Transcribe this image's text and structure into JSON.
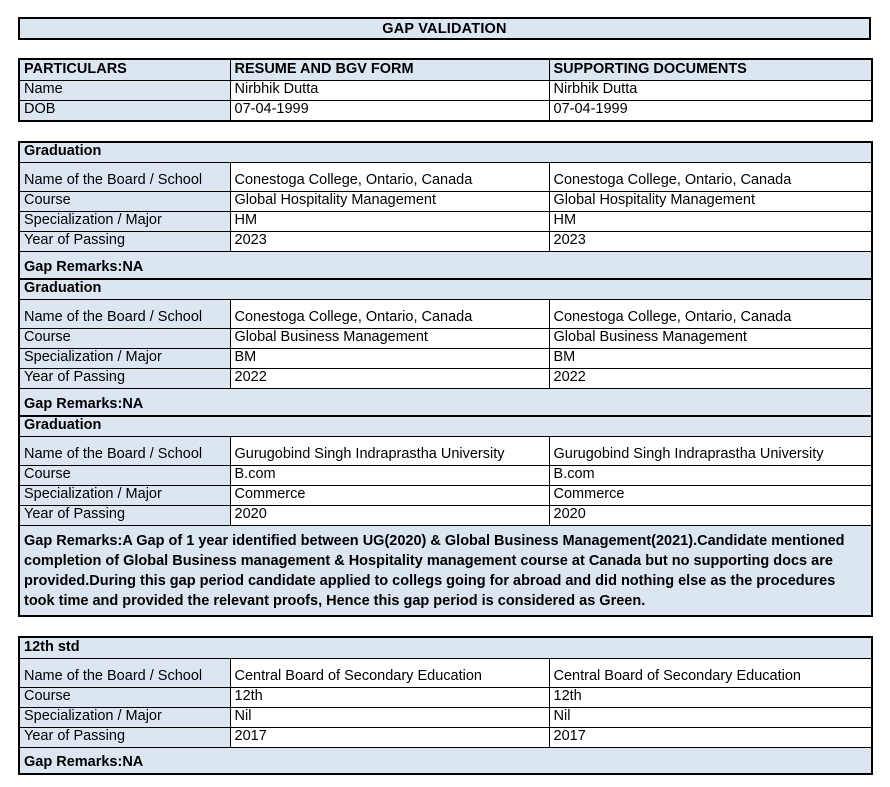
{
  "title": "GAP VALIDATION",
  "colors": {
    "header_bg": "#DCE6F1",
    "cell_bg": "#FFFFFF",
    "border": "#000000",
    "text": "#000000"
  },
  "particulars_table": {
    "headers": [
      "PARTICULARS",
      "RESUME AND BGV FORM",
      "SUPPORTING DOCUMENTS"
    ],
    "rows": [
      {
        "label": "Name",
        "resume": "Nirbhik Dutta",
        "docs": "Nirbhik Dutta"
      },
      {
        "label": "DOB",
        "resume": "07-04-1999",
        "docs": "07-04-1999"
      }
    ]
  },
  "sections": [
    {
      "heading": "Graduation",
      "rows": [
        {
          "label": "Name of the Board / School",
          "resume": "Conestoga College, Ontario, Canada",
          "docs": "Conestoga College, Ontario, Canada"
        },
        {
          "label": "Course",
          "resume": "Global Hospitality Management",
          "docs": "Global Hospitality Management"
        },
        {
          "label": "Specialization / Major",
          "resume": "HM",
          "docs": "HM"
        },
        {
          "label": "Year of Passing",
          "resume": "2023",
          "docs": "2023"
        }
      ],
      "gap_remarks": "Gap Remarks:NA"
    },
    {
      "heading": "Graduation",
      "rows": [
        {
          "label": "Name of the Board / School",
          "resume": "Conestoga College, Ontario, Canada",
          "docs": "Conestoga College, Ontario, Canada"
        },
        {
          "label": "Course",
          "resume": "Global Business Management",
          "docs": "Global Business Management"
        },
        {
          "label": "Specialization / Major",
          "resume": "BM",
          "docs": "BM"
        },
        {
          "label": "Year of Passing",
          "resume": "2022",
          "docs": "2022"
        }
      ],
      "gap_remarks": "Gap Remarks:NA"
    },
    {
      "heading": "Graduation",
      "rows": [
        {
          "label": "Name of the Board / School",
          "resume": "Gurugobind Singh Indraprastha University",
          "docs": "Gurugobind Singh Indraprastha University"
        },
        {
          "label": "Course",
          "resume": "B.com",
          "docs": "B.com"
        },
        {
          "label": "Specialization / Major",
          "resume": "Commerce",
          "docs": "Commerce"
        },
        {
          "label": "Year of Passing",
          "resume": "2020",
          "docs": "2020"
        }
      ],
      "gap_remarks": "Gap Remarks:A Gap of 1 year identified between UG(2020) & Global Business Management(2021).Candidate mentioned completion of Global Business management & Hospitality management course at Canada but no supporting docs are provided.During this gap period candidate applied to collegs going for abroad and did nothing else as the procedures took time and provided the relevant proofs, Hence this gap period is considered as Green."
    },
    {
      "heading": "12th std",
      "rows": [
        {
          "label": "Name of the Board / School",
          "resume": "Central Board of Secondary Education",
          "docs": "Central Board of Secondary Education"
        },
        {
          "label": "Course",
          "resume": "12th",
          "docs": "12th"
        },
        {
          "label": "Specialization / Major",
          "resume": "Nil",
          "docs": "Nil"
        },
        {
          "label": "Year of Passing",
          "resume": "2017",
          "docs": "2017"
        }
      ],
      "gap_remarks": "Gap Remarks:NA"
    }
  ]
}
